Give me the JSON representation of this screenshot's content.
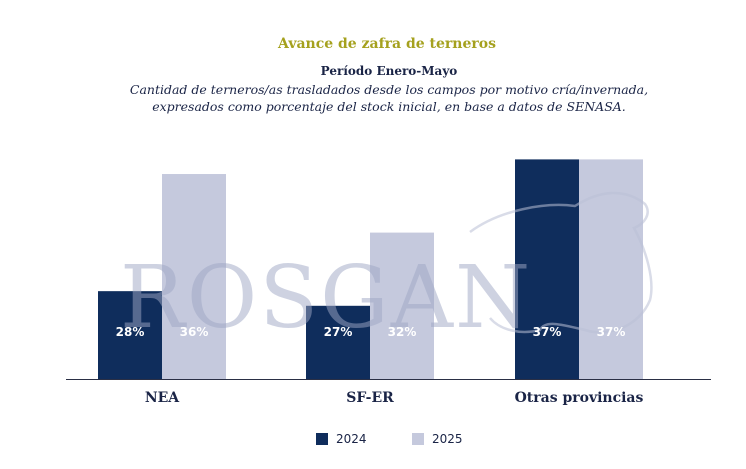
{
  "chart_data": {
    "type": "bar",
    "title": "Avance de zafra de terneros",
    "subtitle": "Período Enero-Mayo",
    "description": [
      "Cantidad de terneros/as trasladados desde los campos por motivo cría/invernada,",
      "expresados como porcentaje del stock inicial, en base a datos de SENASA."
    ],
    "categories": [
      "NEA",
      "SF-ER",
      "Otras provincias"
    ],
    "series": [
      {
        "name": "2024",
        "values": [
          28,
          27,
          37
        ],
        "labels": [
          "28%",
          "27%",
          "37%"
        ],
        "color": "#0f2d5c"
      },
      {
        "name": "2025",
        "values": [
          36,
          32,
          37
        ],
        "labels": [
          "36%",
          "32%",
          "37%"
        ],
        "color": "#c5c9dd"
      }
    ],
    "ylim": [
      22,
      37.3
    ],
    "grid": false,
    "legend_position": "bottom-center",
    "watermark": "ROSGAN"
  }
}
